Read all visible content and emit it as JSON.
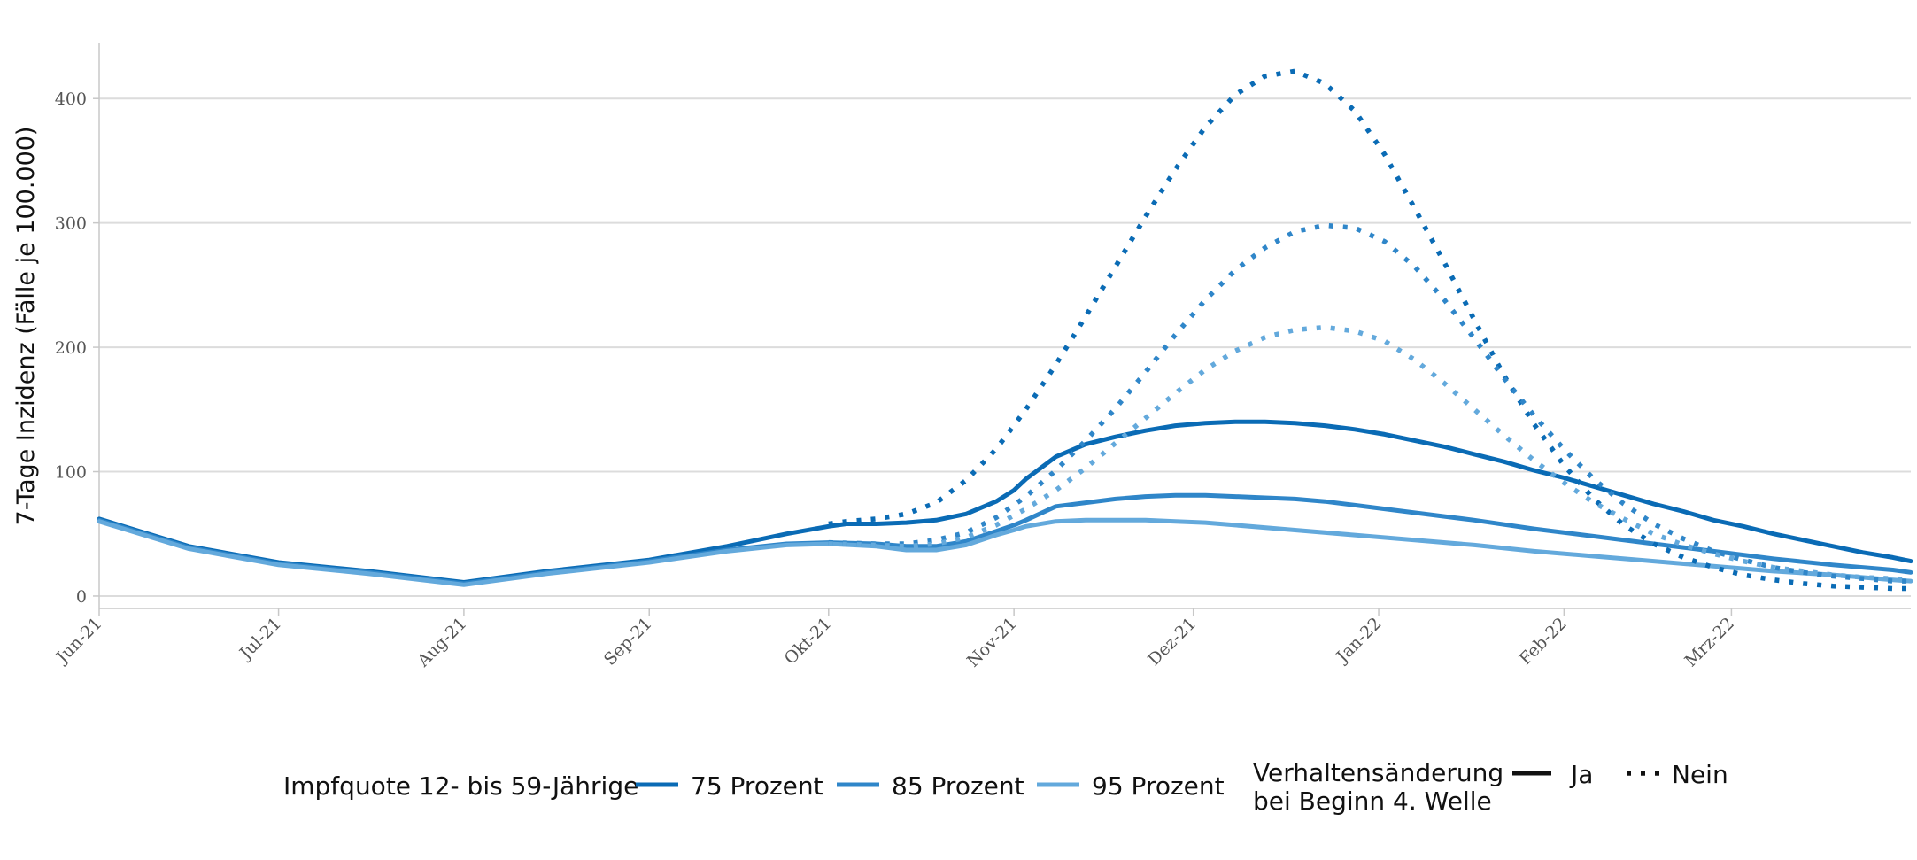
{
  "chart_data": {
    "type": "line",
    "title": "",
    "xlabel": "",
    "ylabel": "7-Tage Inzidenz (Fälle je 100.000)",
    "ylim": [
      -10,
      445
    ],
    "xlim": [
      0,
      303
    ],
    "y_ticks": [
      0,
      100,
      200,
      300,
      400
    ],
    "y_tick_labels": [
      "0",
      "100",
      "200",
      "300",
      "400"
    ],
    "x_ticks": [
      0,
      30,
      61,
      92,
      122,
      153,
      183,
      214,
      245,
      273
    ],
    "x_tick_labels": [
      "Jun-21",
      "Jul-21",
      "Aug-21",
      "Sep-21",
      "Okt-21",
      "Nov-21",
      "Dez-21",
      "Jan-22",
      "Feb-22",
      "Mrz-22"
    ],
    "grid": true,
    "legend": {
      "position": "bottom",
      "color_title": "Impfquote 12- bis 59-Jährige",
      "color_items": [
        "75 Prozent",
        "85 Prozent",
        "95 Prozent"
      ],
      "linetype_title_line1": "Verhaltensänderung",
      "linetype_title_line2": "bei Beginn 4. Welle",
      "linetype_items": [
        "Ja",
        "Nein"
      ]
    },
    "series": [
      {
        "name": "75 Prozent – Ja",
        "group": "75 Prozent",
        "linetype": "solid",
        "color": "#0a6bb5",
        "x": [
          0,
          15,
          30,
          45,
          61,
          75,
          92,
          105,
          115,
          122,
          125,
          130,
          135,
          140,
          145,
          150,
          153,
          155,
          160,
          165,
          170,
          175,
          180,
          185,
          190,
          195,
          200,
          205,
          210,
          215,
          220,
          225,
          230,
          235,
          240,
          245,
          250,
          255,
          260,
          265,
          270,
          275,
          280,
          285,
          290,
          295,
          300,
          303
        ],
        "y": [
          62,
          40,
          27,
          20,
          11,
          20,
          29,
          40,
          50,
          56,
          58,
          58,
          59,
          61,
          66,
          76,
          85,
          94,
          112,
          122,
          128,
          133,
          137,
          139,
          140,
          140,
          139,
          137,
          134,
          130,
          125,
          120,
          114,
          108,
          101,
          95,
          88,
          81,
          74,
          68,
          61,
          56,
          50,
          45,
          40,
          35,
          31,
          28
        ]
      },
      {
        "name": "85 Prozent – Ja",
        "group": "85 Prozent",
        "linetype": "solid",
        "color": "#2f86c9",
        "x": [
          0,
          15,
          30,
          45,
          61,
          75,
          92,
          105,
          115,
          122,
          130,
          135,
          140,
          145,
          150,
          153,
          155,
          160,
          165,
          170,
          175,
          180,
          185,
          190,
          195,
          200,
          205,
          210,
          215,
          220,
          225,
          230,
          240,
          250,
          260,
          270,
          280,
          290,
          300,
          303
        ],
        "y": [
          61,
          39,
          26,
          19,
          10,
          19,
          28,
          37,
          42,
          43,
          42,
          40,
          40,
          44,
          52,
          57,
          61,
          72,
          75,
          78,
          80,
          81,
          81,
          80,
          79,
          78,
          76,
          73,
          70,
          67,
          64,
          61,
          54,
          48,
          42,
          36,
          30,
          25,
          21,
          19
        ]
      },
      {
        "name": "95 Prozent – Ja",
        "group": "95 Prozent",
        "linetype": "solid",
        "color": "#63a9dc",
        "x": [
          0,
          15,
          30,
          45,
          61,
          75,
          92,
          105,
          115,
          122,
          130,
          135,
          140,
          145,
          150,
          153,
          155,
          160,
          165,
          170,
          175,
          180,
          185,
          190,
          200,
          210,
          220,
          230,
          240,
          250,
          260,
          270,
          280,
          290,
          300,
          303
        ],
        "y": [
          60,
          38,
          25,
          18,
          9,
          18,
          27,
          36,
          41,
          42,
          40,
          37,
          37,
          41,
          49,
          53,
          56,
          60,
          61,
          61,
          61,
          60,
          59,
          57,
          53,
          49,
          45,
          41,
          36,
          32,
          28,
          24,
          20,
          17,
          13,
          12
        ]
      },
      {
        "name": "75 Prozent – Nein",
        "group": "75 Prozent",
        "linetype": "dotted",
        "color": "#0a6bb5",
        "x": [
          122,
          125,
          130,
          135,
          140,
          145,
          150,
          155,
          160,
          165,
          170,
          175,
          180,
          185,
          190,
          195,
          200,
          205,
          210,
          215,
          220,
          225,
          230,
          235,
          240,
          245,
          250,
          255,
          260,
          265,
          270,
          275,
          280,
          285,
          290,
          295,
          300,
          303
        ],
        "y": [
          58,
          60,
          62,
          66,
          75,
          93,
          118,
          150,
          186,
          225,
          265,
          305,
          343,
          377,
          403,
          418,
          422,
          412,
          390,
          355,
          312,
          268,
          222,
          177,
          138,
          105,
          78,
          57,
          42,
          31,
          23,
          17,
          13,
          10,
          8,
          7,
          6,
          6
        ]
      },
      {
        "name": "85 Prozent – Nein",
        "group": "85 Prozent",
        "linetype": "dotted",
        "color": "#2f86c9",
        "x": [
          122,
          130,
          135,
          140,
          145,
          150,
          155,
          160,
          165,
          170,
          175,
          180,
          185,
          190,
          195,
          200,
          205,
          210,
          215,
          220,
          225,
          230,
          235,
          240,
          245,
          250,
          255,
          260,
          265,
          270,
          275,
          280,
          285,
          290,
          295,
          300,
          303
        ],
        "y": [
          43,
          42,
          42,
          45,
          51,
          63,
          80,
          101,
          125,
          151,
          180,
          210,
          238,
          262,
          280,
          293,
          298,
          296,
          285,
          265,
          238,
          207,
          175,
          145,
          118,
          94,
          74,
          58,
          46,
          36,
          29,
          23,
          19,
          16,
          14,
          12,
          12
        ]
      },
      {
        "name": "95 Prozent – Nein",
        "group": "95 Prozent",
        "linetype": "dotted",
        "color": "#63a9dc",
        "x": [
          122,
          130,
          135,
          140,
          145,
          150,
          155,
          160,
          165,
          170,
          175,
          180,
          185,
          190,
          195,
          200,
          205,
          210,
          215,
          220,
          225,
          230,
          235,
          240,
          245,
          250,
          255,
          260,
          265,
          270,
          275,
          280,
          285,
          290,
          295,
          300,
          303
        ],
        "y": [
          42,
          41,
          40,
          42,
          47,
          57,
          70,
          85,
          103,
          123,
          143,
          163,
          182,
          197,
          208,
          214,
          216,
          213,
          205,
          190,
          171,
          150,
          129,
          109,
          91,
          75,
          62,
          50,
          41,
          34,
          28,
          23,
          20,
          17,
          15,
          14,
          13
        ]
      }
    ]
  }
}
